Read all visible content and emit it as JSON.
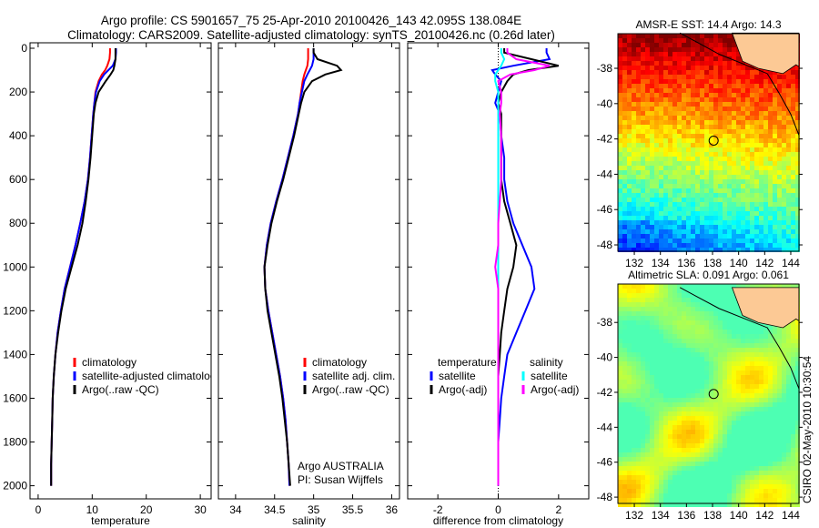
{
  "title": {
    "line1": "Argo profile: CS 5901657_75 25-Apr-2010 20100426_143 42.095S 138.084E",
    "line2": "Climatology: CARS2009. Satellite-adjusted climatology: synTS_20100426.nc (0.26d later)"
  },
  "footer": "CSIRO 02-May-2010 10:30:54",
  "colors": {
    "climatology": "#ff0000",
    "satellite": "#0000ff",
    "argo": "#000000",
    "sal_satellite": "#00ffff",
    "sal_argo": "#ff00ff"
  },
  "chart_data": [
    {
      "type": "line",
      "xlabel": "temperature",
      "ylabel": "",
      "xlim": [
        -1.5,
        32
      ],
      "ylim": [
        2060,
        -25
      ],
      "xticks": [
        0,
        10,
        20,
        30
      ],
      "xtick_labels": [
        "0",
        "10",
        "20",
        "30"
      ],
      "yticks": [
        0,
        200,
        400,
        600,
        800,
        1000,
        1200,
        1400,
        1600,
        1800,
        2000
      ],
      "ytick_labels": [
        "0",
        "200",
        "400",
        "600",
        "800",
        "1000",
        "1200",
        "1400",
        "1600",
        "1800",
        "2000"
      ],
      "depth": [
        0,
        20,
        50,
        80,
        100,
        120,
        150,
        200,
        250,
        300,
        400,
        500,
        600,
        700,
        800,
        900,
        1000,
        1100,
        1200,
        1300,
        1400,
        1500,
        1600,
        1700,
        1800,
        1900,
        2000
      ],
      "series": [
        {
          "name": "climatology",
          "color": "#ff0000",
          "values": [
            13.3,
            13.3,
            13.2,
            12.8,
            12.4,
            11.8,
            11.2,
            10.6,
            10.4,
            10.2,
            9.9,
            9.6,
            9.2,
            8.6,
            7.8,
            6.9,
            5.9,
            4.9,
            4.2,
            3.6,
            3.2,
            2.9,
            2.7,
            2.6,
            2.5,
            2.4,
            2.4
          ]
        },
        {
          "name": "satellite-adjusted climatology",
          "color": "#0000ff",
          "values": [
            14.4,
            14.4,
            14.3,
            13.8,
            13.0,
            12.2,
            11.4,
            10.7,
            10.4,
            10.2,
            9.9,
            9.6,
            9.2,
            8.6,
            7.8,
            6.9,
            5.9,
            4.9,
            4.2,
            3.6,
            3.2,
            2.9,
            2.7,
            2.6,
            2.5,
            2.4,
            2.4
          ]
        },
        {
          "name": "Argo(..raw -QC)",
          "color": "#000000",
          "values": [
            14.3,
            14.3,
            14.3,
            14.1,
            13.9,
            13.4,
            12.5,
            11.2,
            10.6,
            10.3,
            10.0,
            9.7,
            9.3,
            8.8,
            8.2,
            7.3,
            6.2,
            5.1,
            4.3,
            3.7,
            3.2,
            2.9,
            2.7,
            2.6,
            2.5,
            2.4,
            2.4
          ]
        }
      ],
      "legend": [
        "climatology",
        "satellite-adjusted climatology",
        "Argo(..raw -QC)"
      ],
      "legend_position": "lower-right"
    },
    {
      "type": "line",
      "xlabel": "salinity",
      "xlim": [
        33.78,
        36.1
      ],
      "ylim": [
        2060,
        -25
      ],
      "xticks": [
        34,
        34.5,
        35,
        35.5,
        36
      ],
      "xtick_labels": [
        "34",
        "34.5",
        "35",
        "35.5",
        "36"
      ],
      "depth": [
        0,
        20,
        50,
        80,
        100,
        120,
        150,
        200,
        250,
        300,
        400,
        500,
        600,
        700,
        800,
        900,
        1000,
        1100,
        1200,
        1300,
        1400,
        1500,
        1600,
        1700,
        1800,
        1900,
        2000
      ],
      "series": [
        {
          "name": "climatology",
          "color": "#ff0000",
          "values": [
            34.93,
            34.93,
            34.93,
            34.92,
            34.9,
            34.88,
            34.86,
            34.84,
            34.82,
            34.8,
            34.74,
            34.67,
            34.6,
            34.52,
            34.45,
            34.4,
            34.37,
            34.38,
            34.42,
            34.47,
            34.52,
            34.57,
            34.61,
            34.64,
            34.66,
            34.68,
            34.69
          ]
        },
        {
          "name": "satellite adj. clim.",
          "color": "#0000ff",
          "values": [
            35.0,
            35.0,
            35.0,
            34.98,
            34.95,
            34.92,
            34.88,
            34.85,
            34.82,
            34.8,
            34.74,
            34.67,
            34.6,
            34.52,
            34.45,
            34.4,
            34.37,
            34.38,
            34.42,
            34.47,
            34.52,
            34.57,
            34.61,
            34.64,
            34.66,
            34.68,
            34.69
          ]
        },
        {
          "name": "Argo(..raw -QC)",
          "color": "#000000",
          "values": [
            35.0,
            35.0,
            35.05,
            35.3,
            35.35,
            35.15,
            34.98,
            34.88,
            34.84,
            34.81,
            34.75,
            34.68,
            34.61,
            34.53,
            34.46,
            34.41,
            34.37,
            34.38,
            34.41,
            34.46,
            34.51,
            34.56,
            34.6,
            34.63,
            34.66,
            34.68,
            34.7
          ]
        }
      ],
      "legend": [
        "climatology",
        "satellite adj. clim.",
        "Argo(..raw -QC)"
      ],
      "annotations": [
        "Argo AUSTRALIA",
        "PI: Susan Wijffels"
      ]
    },
    {
      "type": "line",
      "xlabel": "difference from climatology",
      "xlim": [
        -3,
        3
      ],
      "ylim": [
        2060,
        -25
      ],
      "xticks": [
        -2,
        0,
        2
      ],
      "xtick_labels": [
        "-2",
        "0",
        "2"
      ],
      "depth": [
        0,
        20,
        50,
        80,
        100,
        120,
        150,
        200,
        250,
        300,
        400,
        500,
        600,
        700,
        800,
        900,
        1000,
        1100,
        1200,
        1300,
        1400,
        1500,
        1600,
        1700,
        1800,
        1900,
        2000
      ],
      "series": [
        {
          "name": "temperature satellite",
          "color": "#0000ff",
          "values": [
            1.6,
            1.6,
            1.7,
            0.5,
            -0.2,
            -0.1,
            0.1,
            0.0,
            -0.1,
            0.05,
            0.1,
            0.2,
            0.2,
            0.3,
            0.5,
            0.8,
            1.1,
            1.2,
            0.9,
            0.6,
            0.3,
            0.2,
            0.1,
            0.05,
            0,
            0,
            0
          ]
        },
        {
          "name": "temperature Argo(-adj)",
          "color": "#000000",
          "values": [
            0.2,
            0.2,
            1.1,
            2.0,
            1.0,
            0.5,
            0.3,
            0.1,
            0.0,
            0.1,
            0.1,
            0.1,
            0.1,
            0.2,
            0.4,
            0.6,
            0.5,
            0.3,
            0.2,
            0.1,
            0.05,
            0,
            0,
            0,
            0,
            0,
            0
          ]
        },
        {
          "name": "salinity satellite",
          "color": "#00ffff",
          "values": [
            0.1,
            0.1,
            0.2,
            0.1,
            0.0,
            -0.1,
            -0.1,
            0,
            0,
            0,
            0,
            0,
            0,
            0,
            0,
            0,
            0,
            0,
            0,
            0,
            0,
            0,
            0,
            0,
            0,
            0,
            0
          ]
        },
        {
          "name": "salinity Argo(-adj)",
          "color": "#ff00ff",
          "values": [
            0.3,
            0.3,
            0.6,
            1.7,
            1.2,
            0.4,
            0,
            0.1,
            0.1,
            0.05,
            0.1,
            0.1,
            0.1,
            0.05,
            0,
            0,
            -0.1,
            0,
            0,
            0,
            0,
            0,
            0,
            0,
            0,
            0,
            0
          ]
        }
      ],
      "legend_headers": [
        "temperature",
        "salinity"
      ],
      "legend": [
        "satellite",
        "Argo(-adj)",
        "satellite",
        "Argo(-adj)"
      ]
    },
    {
      "type": "heatmap",
      "title": "AMSR-E SST: 14.4  Argo: 14.3",
      "xlim": [
        130.74,
        144.63
      ],
      "ylim": [
        -48.36,
        -36.04
      ],
      "xtick_labels": [
        "132",
        "134",
        "136",
        "138",
        "140",
        "142",
        "144"
      ],
      "ytick_labels": [
        "-38",
        "-40",
        "-42",
        "-44",
        "-46",
        "-48"
      ],
      "argo_position": [
        138.084,
        -42.095
      ]
    },
    {
      "type": "heatmap",
      "title": "Altimetric SLA: 0.091  Argo: 0.061",
      "xlim": [
        130.74,
        144.63
      ],
      "ylim": [
        -48.36,
        -35.8
      ],
      "xtick_labels": [
        "132",
        "134",
        "136",
        "138",
        "140",
        "142",
        "144"
      ],
      "ytick_labels": [
        "-38",
        "-40",
        "-42",
        "-44",
        "-46",
        "-48"
      ],
      "argo_position": [
        138.084,
        -42.095
      ]
    }
  ]
}
